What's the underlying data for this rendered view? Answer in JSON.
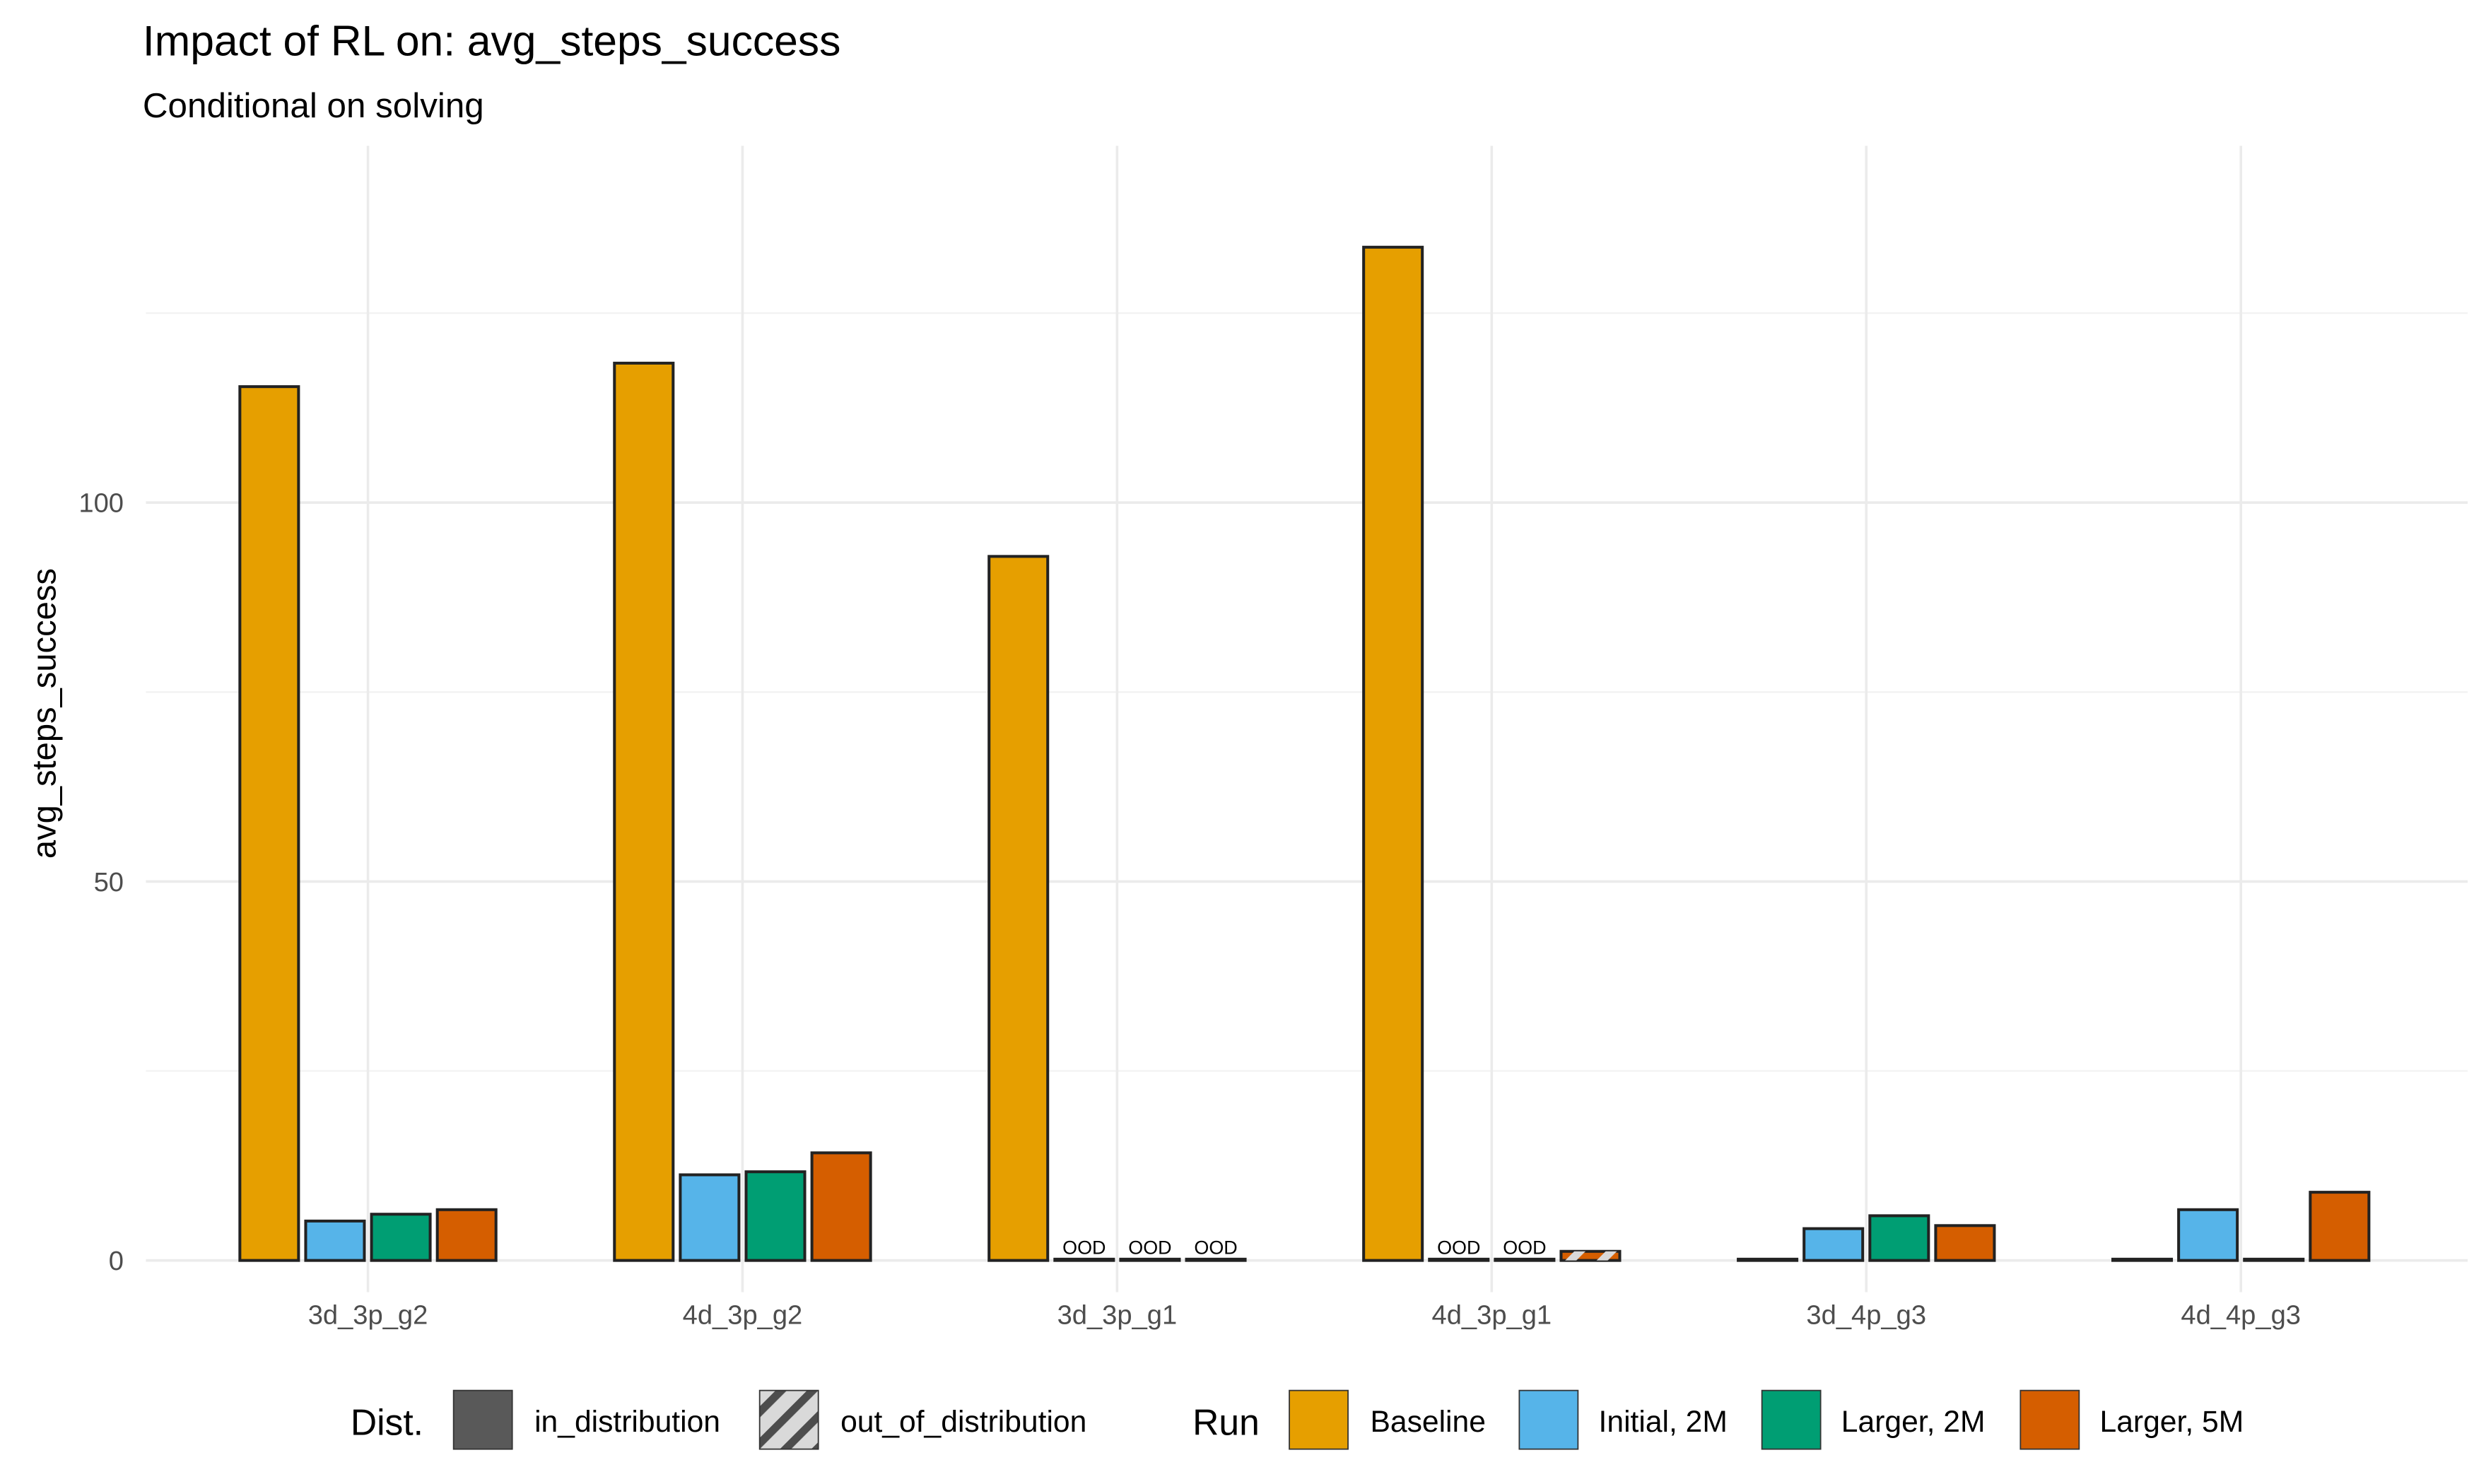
{
  "chart_data": {
    "type": "bar",
    "title": "Impact of RL on: avg_steps_success",
    "subtitle": "Conditional on solving",
    "xlabel": "",
    "ylabel": "avg_steps_success",
    "ylim": [
      0,
      138
    ],
    "yticks": [
      0,
      50,
      100
    ],
    "grid": true,
    "categories": [
      "3d_3p_g2",
      "4d_3p_g2",
      "3d_3p_g1",
      "4d_3p_g1",
      "3d_4p_g3",
      "4d_4p_g3"
    ],
    "series": [
      {
        "name": "Baseline",
        "color": "#E69F00",
        "values": [
          115.3,
          118.4,
          92.9,
          133.7,
          0,
          0
        ],
        "dist": [
          "in",
          "in",
          "in",
          "in",
          "in",
          "in"
        ]
      },
      {
        "name": "Initial, 2M",
        "color": "#56B4E9",
        "values": [
          5.2,
          11.3,
          0,
          0,
          4.2,
          6.7
        ],
        "dist": [
          "in",
          "in",
          "out",
          "out",
          "in",
          "in"
        ]
      },
      {
        "name": "Larger, 2M",
        "color": "#009E73",
        "values": [
          6.1,
          11.7,
          0,
          0,
          5.9,
          0
        ],
        "dist": [
          "in",
          "in",
          "out",
          "out",
          "in",
          "in"
        ]
      },
      {
        "name": "Larger, 5M",
        "color": "#D55E00",
        "values": [
          6.7,
          14.2,
          0,
          1.2,
          4.6,
          9.0
        ],
        "dist": [
          "in",
          "in",
          "out",
          "out",
          "in",
          "in"
        ]
      }
    ],
    "annotation_label": "OOD",
    "ood_annotations": [
      [
        2,
        1
      ],
      [
        2,
        2
      ],
      [
        2,
        3
      ],
      [
        3,
        1
      ],
      [
        3,
        2
      ]
    ],
    "legend": {
      "position": "bottom",
      "dist_title": "Dist.",
      "dist_items": [
        "in_distribution",
        "out_of_distribution"
      ],
      "run_title": "Run",
      "run_items": [
        "Baseline",
        "Initial, 2M",
        "Larger, 2M",
        "Larger, 5M"
      ]
    }
  }
}
